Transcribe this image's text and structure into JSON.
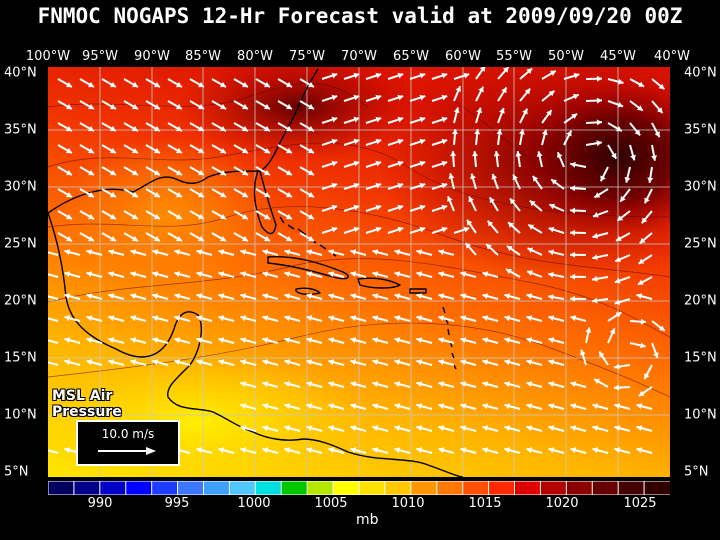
{
  "title": "FNMOC NOGAPS 12-Hr Forecast valid at 2009/09/20 00Z",
  "longitude_labels": [
    "100°W",
    "95°W",
    "90°W",
    "85°W",
    "80°W",
    "75°W",
    "70°W",
    "65°W",
    "60°W",
    "55°W",
    "50°W",
    "45°W",
    "40°W"
  ],
  "latitude_labels": [
    "40°N",
    "35°N",
    "30°N",
    "25°N",
    "20°N",
    "15°N",
    "10°N",
    "5°N"
  ],
  "layer_label": "MSL Air Pressure",
  "wind_reference": {
    "label": "10.0 m/s",
    "value_ms": 10.0
  },
  "colorbar": {
    "tick_labels": [
      "990",
      "995",
      "1000",
      "1005",
      "1010",
      "1015",
      "1020",
      "1025"
    ],
    "units": "mb",
    "colors": [
      "#000060",
      "#00008c",
      "#0000c8",
      "#0000ff",
      "#1e3cff",
      "#3c78ff",
      "#3ca0ff",
      "#50c8ff",
      "#00e0e0",
      "#00c800",
      "#b4e600",
      "#ffff00",
      "#ffe100",
      "#ffc800",
      "#ff9600",
      "#ff7800",
      "#ff5000",
      "#ff2800",
      "#dc0000",
      "#b40000",
      "#8c0000",
      "#640000",
      "#460000",
      "#300000"
    ]
  },
  "map_colors": {
    "ocean_low": "#ffe600",
    "ocean_mid": "#ff9600",
    "ocean_high": "#e61400",
    "ridge": "#6e0000",
    "coastline": "#000000",
    "grid": "#c8c8c8",
    "wind_arrow": "#ffffff"
  }
}
